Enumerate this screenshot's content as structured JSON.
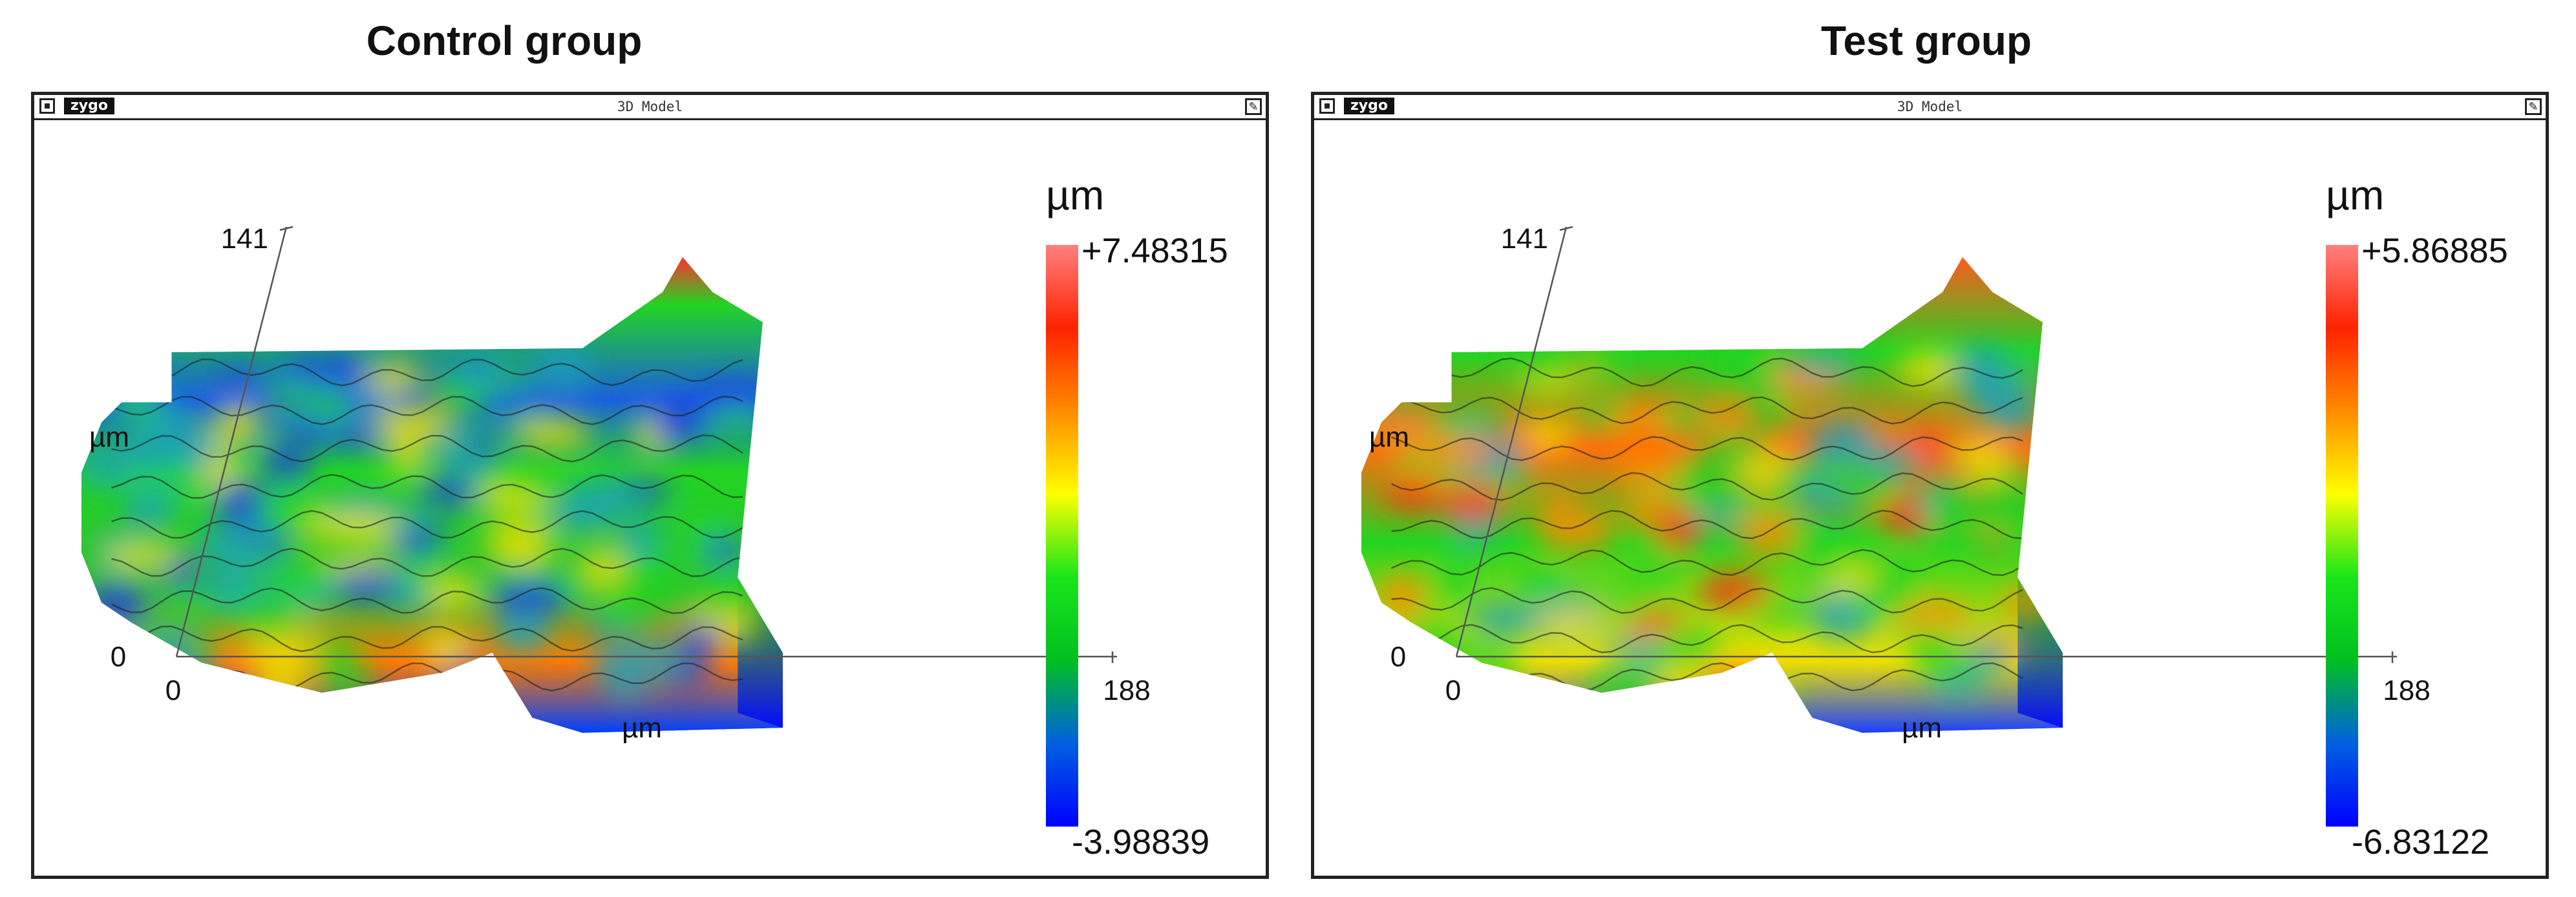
{
  "panels": [
    {
      "title": "Control group",
      "window": {
        "logo": "zygo",
        "title": "3D Model",
        "tool_icon": "wrench-icon"
      },
      "axes": {
        "y_top": "141",
        "y_unit": "µm",
        "origin_y": "0",
        "origin_x": "0",
        "x_end": "188",
        "x_unit": "µm"
      },
      "colorbar": {
        "unit": "µm",
        "max": "+7.48315",
        "min": "-3.98839"
      },
      "colors": [
        "#0000ff",
        "#0060e0",
        "#00c020",
        "#19e619",
        "#ffff00",
        "#ff8c00",
        "#ff2200",
        "#ff8080"
      ]
    },
    {
      "title": "Test group",
      "window": {
        "logo": "zygo",
        "title": "3D Model",
        "tool_icon": "wrench-icon"
      },
      "axes": {
        "y_top": "141",
        "y_unit": "µm",
        "origin_y": "0",
        "origin_x": "0",
        "x_end": "188",
        "x_unit": "µm"
      },
      "colorbar": {
        "unit": "µm",
        "max": "+5.86885",
        "min": "-6.83122"
      },
      "colors": [
        "#0000ff",
        "#0060e0",
        "#00c020",
        "#19e619",
        "#ffff00",
        "#ff8c00",
        "#ff2200",
        "#ff8080"
      ]
    }
  ]
}
